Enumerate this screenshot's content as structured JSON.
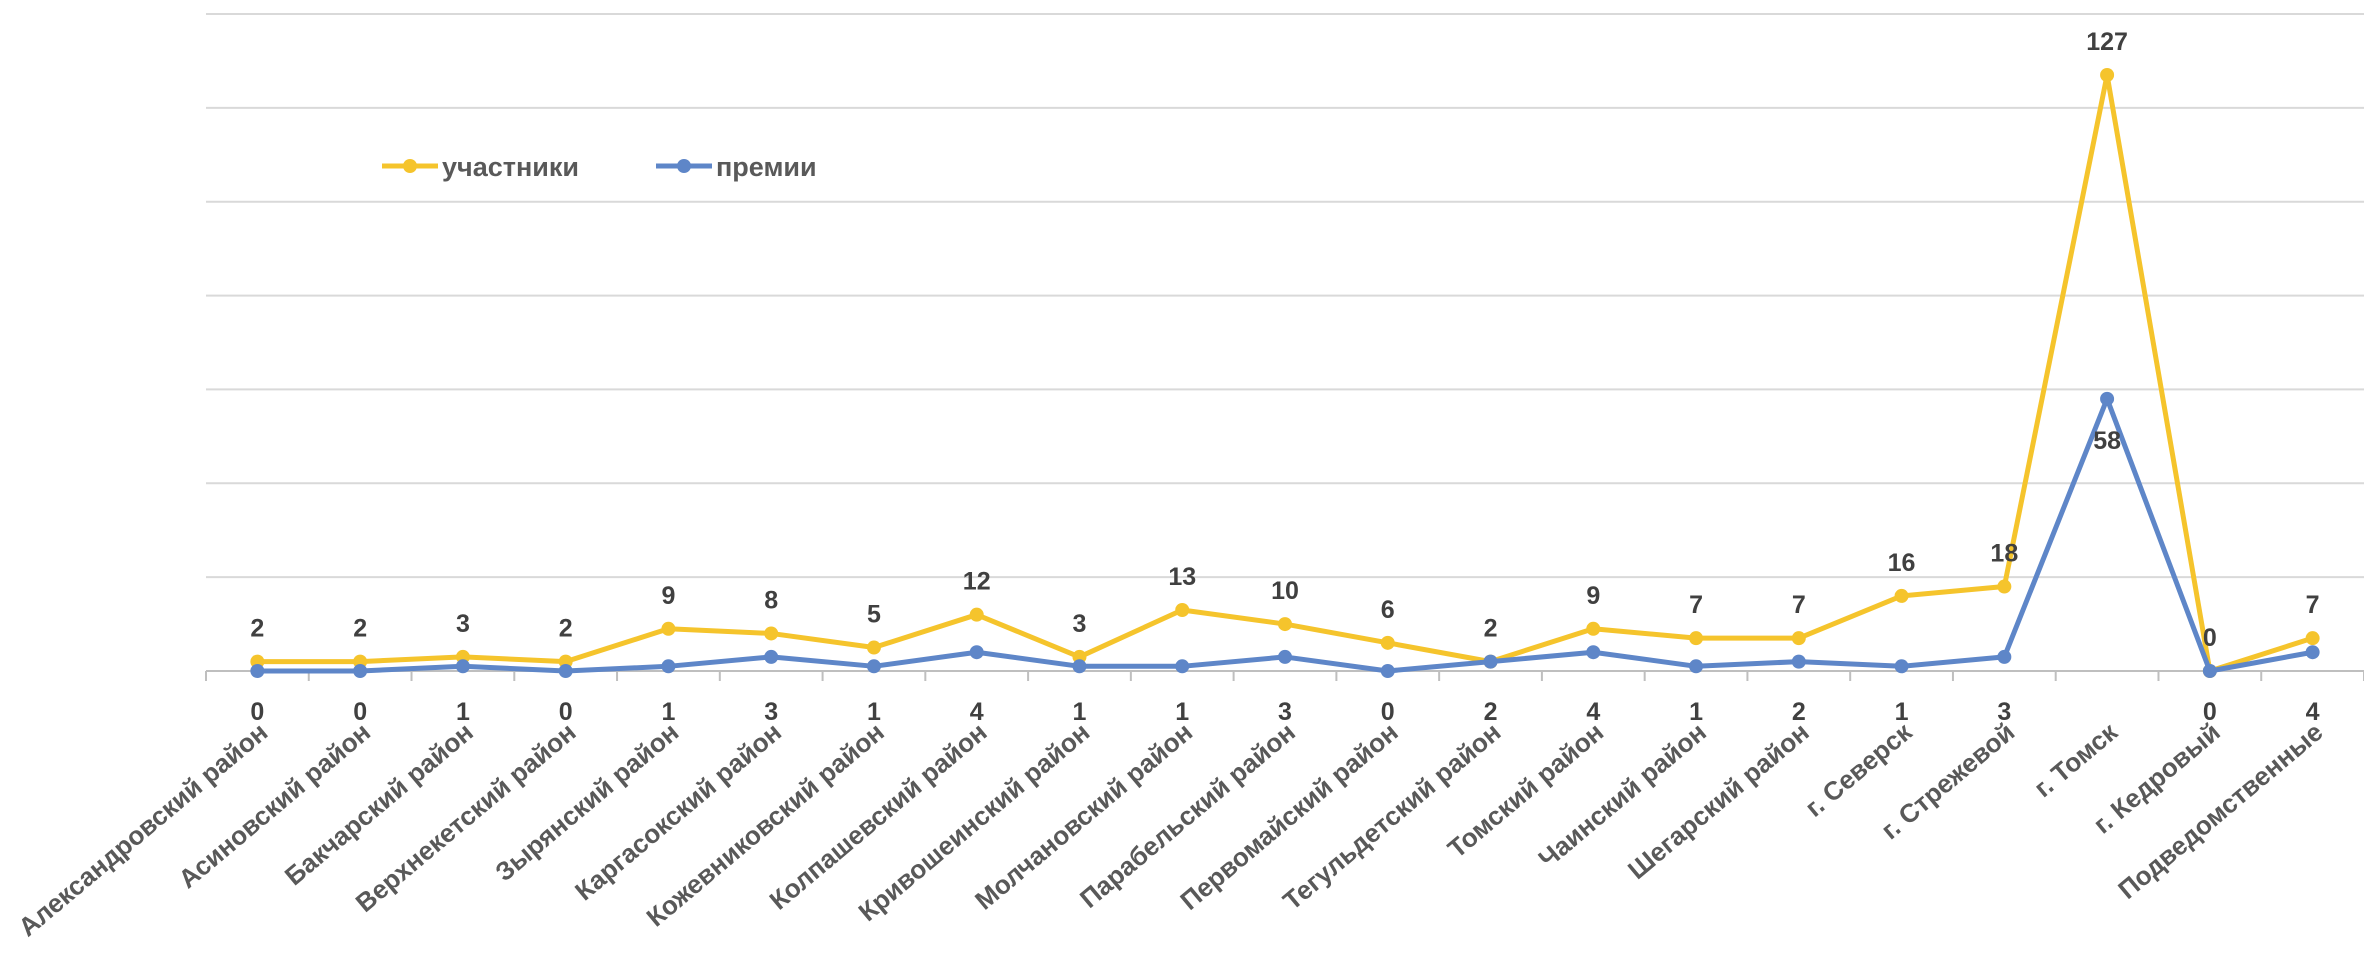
{
  "chart_data": {
    "type": "line",
    "categories": [
      "Александровский район",
      "Асиновский район",
      "Бакчарский район",
      "Верхнекетский район",
      "Зырянский район",
      "Каргасокский район",
      "Кожевниковский район",
      "Колпашевский район",
      "Кривошеинский район",
      "Молчановский район",
      "Парабельский район",
      "Первомайский район",
      "Тегульдетский район",
      "Томский район",
      "Чаинский район",
      "Шегарский район",
      "г. Северск",
      "г. Стрежевой",
      "г. Томск",
      "г. Кедровый",
      "Подведомственные"
    ],
    "series": [
      {
        "name": "участники",
        "color": "#F5C42C",
        "values": [
          2,
          2,
          3,
          2,
          9,
          8,
          5,
          12,
          3,
          13,
          10,
          6,
          2,
          9,
          7,
          7,
          16,
          18,
          127,
          0,
          7
        ]
      },
      {
        "name": "премии",
        "color": "#5E86C8",
        "values": [
          0,
          0,
          1,
          0,
          1,
          3,
          1,
          4,
          1,
          1,
          3,
          0,
          2,
          4,
          1,
          2,
          1,
          3,
          58,
          0,
          4
        ]
      }
    ],
    "ylim": [
      0,
      140
    ],
    "grid": true,
    "legend": "top-left",
    "title": "",
    "xlabel": "",
    "ylabel": ""
  }
}
